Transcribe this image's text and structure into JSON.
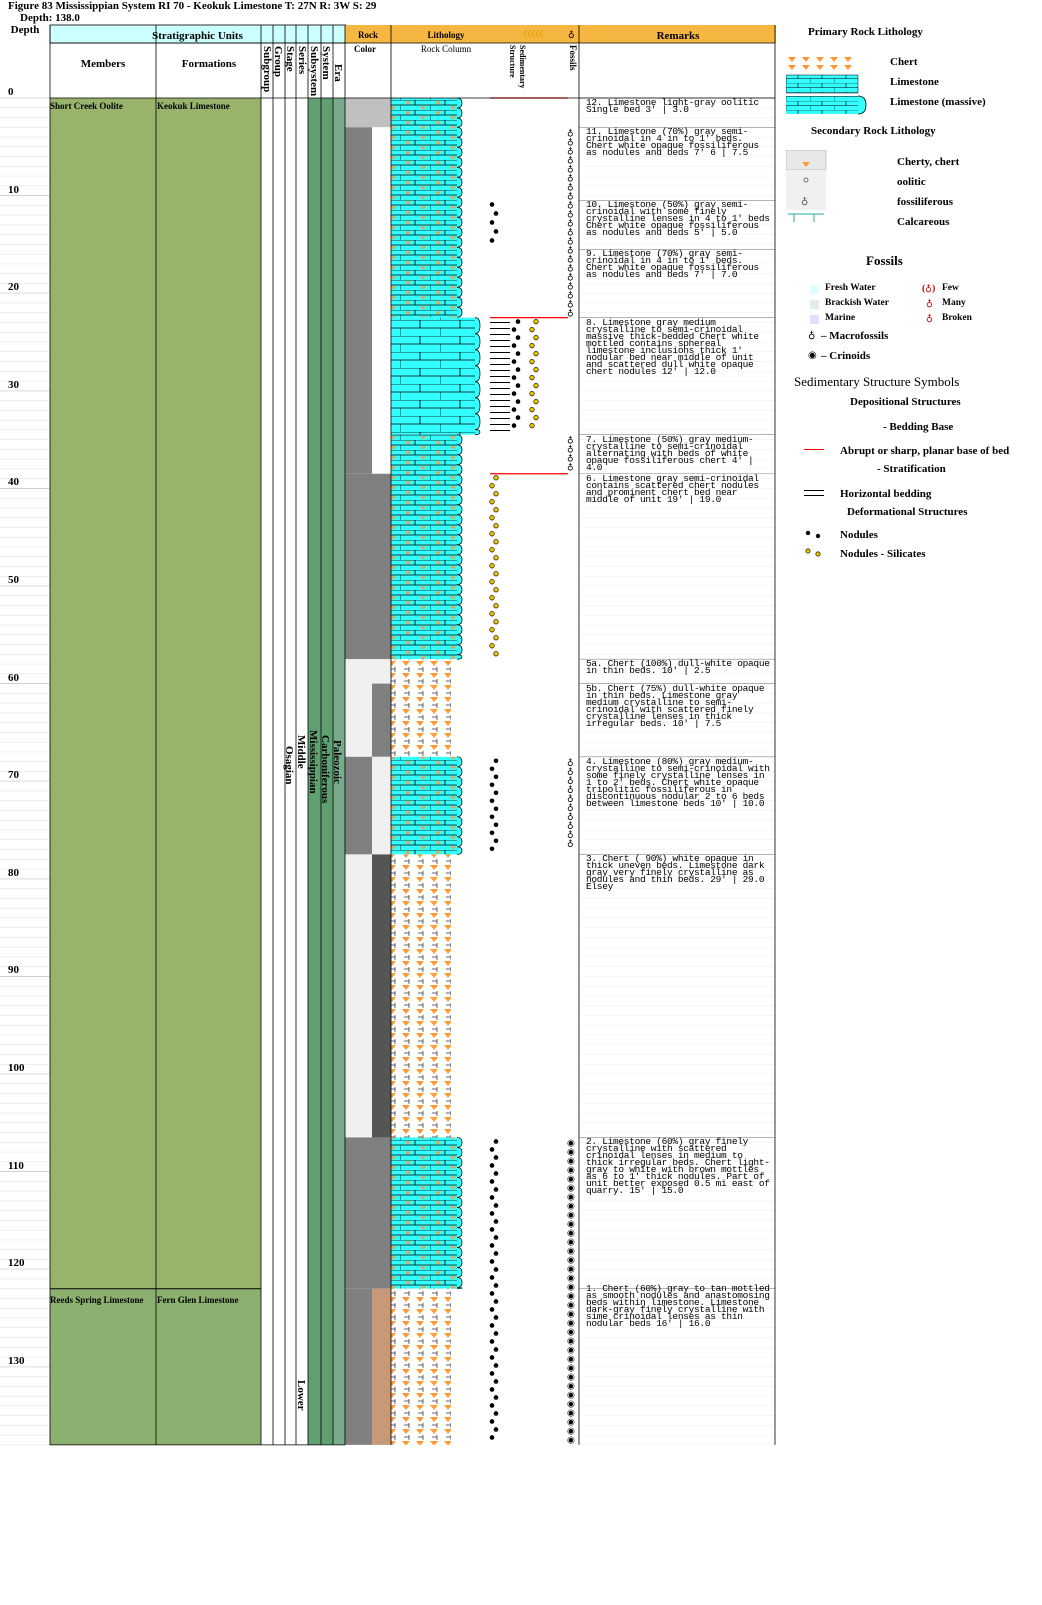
{
  "header": {
    "title": "Figure 83 Mississippian System RI 70 - Keokuk Limestone T: 27N R: 3W S: 29",
    "depth_label": "Depth: 138.0"
  },
  "columns": {
    "depth": "Depth",
    "stratigraphic_units": "Stratigraphic Units",
    "members": "Members",
    "formations": "Formations",
    "subgroup": "Subgroup",
    "group": "Group",
    "stage": "Stage",
    "series": "Series",
    "subsystem": "Subsystem",
    "system": "System",
    "era": "Era",
    "rock": "Rock",
    "color": "Color",
    "lithology": "Lithology",
    "rock_column": "Rock Column",
    "sedimentary_structure": "Sedimentary Structure",
    "fossils": "Fossils",
    "remarks": "Remarks"
  },
  "depth_ticks": [
    "0",
    "10",
    "20",
    "30",
    "40",
    "50",
    "60",
    "70",
    "80",
    "90",
    "100",
    "110",
    "120",
    "130"
  ],
  "units": {
    "member_upper": "Short Creek Oolite",
    "formation_upper": "Keokuk Limestone",
    "member_lower": "Reeds Spring Limestone",
    "formation_lower": "Fern Glen Limestone",
    "stage": "Osagian",
    "series_upper": "Middle",
    "series_lower": "Lower",
    "subsystem": "Mississippian",
    "system": "Carboniferous",
    "era": "Paleozoic"
  },
  "remarks": [
    {
      "top": 0,
      "text": "12. Limestone light-gray oolitic Single bed 3' | 3.0"
    },
    {
      "top": 3,
      "text": "11. Limestone (70%) gray semi-crinoidal in 4 in to 1' beds. Chert white opaque fossiliferous as nodules and beds 7' 6 | 7.5"
    },
    {
      "top": 10.5,
      "text": "10. Limestone (50%) gray semi-crinoidal with some finely crystalline lenses in 4 to 1' beds Chert white opaque fossiliferous as nodules and beds 5' | 5.0"
    },
    {
      "top": 15.5,
      "text": "9. Limestone (70%) gray semi-crinoidal in 4 in to 1' beds. Chert white opaque fossiliferous as nodules and beds 7' | 7.0"
    },
    {
      "top": 22.5,
      "text": "8. Limestone gray medium crystalline to semi-crinoidal massive thick-bedded Chert white mottled contains sphereal limestone inclusions thick 1' nodular bed near middle of unit and scattered dull white opaque chert nodules 12' | 12.0"
    },
    {
      "top": 34.5,
      "text": "7. Limestone (50%) gray medium-crystalline to semi-crinoidal alternating with beds of white opaque fossiliferous chert 4' | 4.0"
    },
    {
      "top": 38.5,
      "text": "6. Limestone gray semi-crinoidal contains scattered chert nodules and prominent chert bed near middle of unit 19' | 19.0"
    },
    {
      "top": 57.5,
      "text": "5a. Chert (100%) dull-white opaque in thin beds. 10' | 2.5"
    },
    {
      "top": 60,
      "text": "5b. Chert (75%) dull-white opaque in thin beds. Limestone gray medium crystalline to semi-crinoidal with scattered finely crystalline lenses in thick irregular beds. 10' | 7.5"
    },
    {
      "top": 67.5,
      "text": "4. Limestone (80%) gray medium-crystalline to semi-crinoidal with some finely crystalline lenses in 1 to 2' beds. Chert white opaque tripolitic fossiliferous in discontinuous nodular 2 to 6 beds between limestone beds 10' | 10.0"
    },
    {
      "top": 77.5,
      "text": "3. Chert ( 90%) white opaque in thick uneven beds. Limestone dark gray very finely crystalline as nodules and thin beds. 29' | 29.0 Elsey"
    },
    {
      "top": 106.5,
      "text": "2. Limestone (60%) gray finely crystalline with scattered crinoidal lenses in medium to thick irregular beds. Chert light-gray to white with brown mottles as 6 to 1' thick nodules. Part of unit better exposed 0.5 mi east of quarry. 15' | 15.0"
    },
    {
      "top": 121.5,
      "text": "1. Chert (60%) gray to tan mottled as smooth nodules and anastomosing beds within limestone. Limestone dark-gray finely crystalline with sime crinoidal lenses as thin nodular beds 16' | 16.0"
    }
  ],
  "legend": {
    "primary_title": "Primary Rock Lithology",
    "chert": "Chert",
    "limestone": "Limestone",
    "limestone_massive": "Limestone (massive)",
    "secondary_title": "Secondary Rock Lithology",
    "cherty": "Cherty, chert",
    "oolitic": "oolitic",
    "fossiliferous": "fossiliferous",
    "calcareous": "Calcareous",
    "fossils_title": "Fossils",
    "fresh_water": "Fresh Water",
    "brackish_water": "Brackish Water",
    "marine": "Marine",
    "few": "Few",
    "many": "Many",
    "broken": "Broken",
    "macrofossils": "– Macrofossils",
    "crinoids": "– Crinoids",
    "sed_title": "Sedimentary Structure Symbols",
    "depositional": "Depositional Structures",
    "bedding_base": "- Bedding Base",
    "abrupt": "Abrupt or sharp, planar base of bed",
    "stratification": "- Stratification",
    "horizontal": "Horizontal bedding",
    "deformational": "Deformational Structures",
    "nodules": "Nodules",
    "nodules_silicates": "Nodules - Silicates"
  },
  "colors": {
    "header_yellow": "#f5b741",
    "header_cyan": "#ccffff",
    "unit_green": "#98b46c",
    "unit_green_lower": "#8cb070",
    "subsystem_green": "#5f9f71",
    "era_green": "#77ab8c",
    "limestone_cyan": "#33ffff",
    "chert_orange": "#ff9933",
    "rock_gray": "#808080",
    "rock_lightgray": "#c0c0c0",
    "rock_dark": "#555555",
    "rock_tan": "#c89878",
    "bed_red": "#ff0000"
  }
}
